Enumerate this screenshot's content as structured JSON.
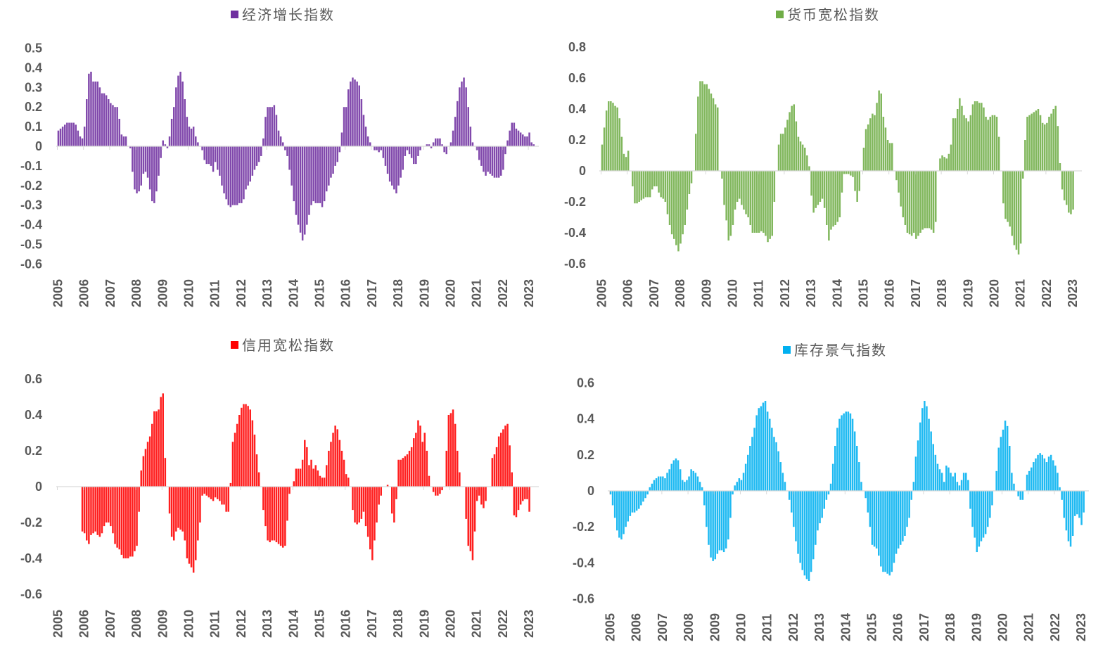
{
  "chart_data": [
    {
      "type": "bar",
      "title": "经济增长指数",
      "legend": "top-center",
      "color": "#7030A0",
      "start": "2005-01",
      "frequency": "monthly",
      "ylim": [
        -0.6,
        0.5
      ],
      "yticks": [
        "0.5",
        "0.4",
        "0.3",
        "0.2",
        "0.1",
        "0",
        "-0.1",
        "-0.2",
        "-0.3",
        "-0.4",
        "-0.5",
        "-0.6"
      ],
      "xticks": [
        "2005",
        "2006",
        "2007",
        "2008",
        "2009",
        "2010",
        "2011",
        "2012",
        "2013",
        "2014",
        "2015",
        "2016",
        "2017",
        "2018",
        "2019",
        "2020",
        "2021",
        "2022",
        "2023"
      ],
      "values": [
        0.08,
        0.09,
        0.1,
        0.11,
        0.12,
        0.12,
        0.12,
        0.12,
        0.11,
        0.08,
        0.05,
        0.04,
        0.1,
        0.24,
        0.37,
        0.38,
        0.33,
        0.33,
        0.33,
        0.3,
        0.27,
        0.27,
        0.26,
        0.24,
        0.22,
        0.21,
        0.2,
        0.2,
        0.14,
        0.06,
        0.05,
        0.05,
        0.0,
        -0.01,
        -0.13,
        -0.22,
        -0.24,
        -0.23,
        -0.2,
        -0.14,
        -0.13,
        -0.16,
        -0.22,
        -0.28,
        -0.29,
        -0.23,
        -0.15,
        -0.06,
        0.03,
        0.01,
        -0.01,
        0.05,
        0.14,
        0.2,
        0.3,
        0.36,
        0.38,
        0.33,
        0.24,
        0.15,
        0.1,
        0.09,
        0.1,
        0.05,
        0.02,
        0.0,
        -0.02,
        -0.07,
        -0.09,
        -0.09,
        -0.1,
        -0.13,
        -0.08,
        -0.12,
        -0.15,
        -0.2,
        -0.24,
        -0.27,
        -0.3,
        -0.31,
        -0.3,
        -0.3,
        -0.3,
        -0.29,
        -0.29,
        -0.27,
        -0.22,
        -0.2,
        -0.18,
        -0.15,
        -0.12,
        -0.1,
        -0.08,
        -0.05,
        0.04,
        0.15,
        0.2,
        0.2,
        0.2,
        0.21,
        0.16,
        0.08,
        0.05,
        0.02,
        -0.02,
        -0.05,
        -0.12,
        -0.2,
        -0.28,
        -0.35,
        -0.4,
        -0.44,
        -0.48,
        -0.45,
        -0.4,
        -0.35,
        -0.3,
        -0.28,
        -0.29,
        -0.29,
        -0.29,
        -0.31,
        -0.28,
        -0.23,
        -0.2,
        -0.16,
        -0.14,
        -0.1,
        -0.08,
        -0.03,
        0.07,
        0.2,
        0.2,
        0.29,
        0.33,
        0.35,
        0.34,
        0.33,
        0.31,
        0.24,
        0.16,
        0.1,
        0.05,
        0.02,
        0.0,
        -0.02,
        -0.02,
        -0.03,
        -0.02,
        -0.06,
        -0.1,
        -0.14,
        -0.18,
        -0.2,
        -0.22,
        -0.24,
        -0.2,
        -0.16,
        -0.12,
        -0.05,
        -0.02,
        -0.04,
        -0.06,
        -0.09,
        -0.09,
        -0.05,
        -0.02,
        0.0,
        0.0,
        0.01,
        0.01,
        -0.01,
        0.02,
        0.04,
        0.04,
        0.04,
        0.01,
        -0.03,
        -0.04,
        0.0,
        0.02,
        0.08,
        0.15,
        0.23,
        0.3,
        0.33,
        0.35,
        0.3,
        0.2,
        0.1,
        0.02,
        0.0,
        -0.02,
        -0.07,
        -0.1,
        -0.13,
        -0.15,
        -0.13,
        -0.14,
        -0.15,
        -0.16,
        -0.16,
        -0.16,
        -0.15,
        -0.12,
        -0.04,
        0.03,
        0.08,
        0.12,
        0.12,
        0.09,
        0.08,
        0.07,
        0.06,
        0.05,
        0.05,
        0.07,
        0.02,
        0.01
      ]
    },
    {
      "type": "bar",
      "title": "货币宽松指数",
      "legend": "top-center",
      "color": "#70AD47",
      "start": "2005-01",
      "frequency": "monthly",
      "ylim": [
        -0.6,
        0.8
      ],
      "yticks": [
        "0.8",
        "0.6",
        "0.4",
        "0.2",
        "0",
        "-0.2",
        "-0.4",
        "-0.6"
      ],
      "xticks": [
        "2005",
        "2006",
        "2007",
        "2008",
        "2009",
        "2010",
        "2011",
        "2012",
        "2013",
        "2014",
        "2015",
        "2016",
        "2017",
        "2018",
        "2019",
        "2020",
        "2021",
        "2022",
        "2023"
      ],
      "values": [
        0.17,
        0.28,
        0.39,
        0.45,
        0.45,
        0.44,
        0.42,
        0.41,
        0.34,
        0.22,
        0.11,
        0.09,
        0.13,
        0.0,
        -0.1,
        -0.21,
        -0.21,
        -0.2,
        -0.19,
        -0.18,
        -0.17,
        -0.17,
        -0.17,
        -0.12,
        -0.1,
        -0.1,
        -0.14,
        -0.17,
        -0.18,
        -0.2,
        -0.28,
        -0.35,
        -0.41,
        -0.44,
        -0.48,
        -0.52,
        -0.47,
        -0.41,
        -0.35,
        -0.25,
        -0.15,
        -0.08,
        0.0,
        0.24,
        0.48,
        0.58,
        0.58,
        0.56,
        0.56,
        0.53,
        0.5,
        0.47,
        0.43,
        0.41,
        0.0,
        -0.05,
        -0.22,
        -0.32,
        -0.45,
        -0.42,
        -0.35,
        -0.25,
        -0.2,
        -0.18,
        -0.22,
        -0.25,
        -0.28,
        -0.3,
        -0.35,
        -0.4,
        -0.4,
        -0.4,
        -0.4,
        -0.39,
        -0.4,
        -0.42,
        -0.46,
        -0.44,
        -0.42,
        -0.2,
        0.0,
        0.17,
        0.24,
        0.24,
        0.28,
        0.33,
        0.38,
        0.42,
        0.43,
        0.32,
        0.22,
        0.19,
        0.17,
        0.15,
        0.1,
        0.03,
        -0.16,
        -0.27,
        -0.24,
        -0.22,
        -0.2,
        -0.18,
        -0.24,
        -0.35,
        -0.45,
        -0.38,
        -0.36,
        -0.35,
        -0.33,
        -0.3,
        -0.14,
        -0.02,
        -0.02,
        -0.02,
        -0.03,
        -0.04,
        -0.13,
        -0.2,
        -0.13,
        0.0,
        0.15,
        0.27,
        0.3,
        0.34,
        0.37,
        0.36,
        0.44,
        0.52,
        0.5,
        0.35,
        0.28,
        0.2,
        0.18,
        0.18,
        0.0,
        -0.06,
        -0.14,
        -0.23,
        -0.3,
        -0.35,
        -0.4,
        -0.41,
        -0.42,
        -0.4,
        -0.44,
        -0.42,
        -0.4,
        -0.38,
        -0.37,
        -0.37,
        -0.37,
        -0.38,
        -0.4,
        -0.33,
        0.0,
        0.08,
        0.1,
        0.09,
        0.08,
        0.11,
        0.17,
        0.34,
        0.34,
        0.4,
        0.47,
        0.42,
        0.36,
        0.34,
        0.32,
        0.36,
        0.43,
        0.45,
        0.45,
        0.44,
        0.44,
        0.41,
        0.35,
        0.33,
        0.35,
        0.36,
        0.36,
        0.35,
        0.22,
        0.0,
        -0.21,
        -0.31,
        -0.33,
        -0.36,
        -0.42,
        -0.48,
        -0.51,
        -0.54,
        -0.47,
        -0.05,
        0.2,
        0.35,
        0.36,
        0.37,
        0.38,
        0.39,
        0.4,
        0.36,
        0.31,
        0.3,
        0.31,
        0.35,
        0.37,
        0.4,
        0.42,
        0.29,
        0.05,
        -0.12,
        -0.19,
        -0.22,
        -0.27,
        -0.28,
        -0.25
      ]
    },
    {
      "type": "bar",
      "title": "信用宽松指数",
      "legend": "top-center",
      "color": "#FF0000",
      "start": "2005-01",
      "frequency": "monthly",
      "ylim": [
        -0.6,
        0.6
      ],
      "yticks": [
        "0.6",
        "0.4",
        "0.2",
        "0",
        "-0.2",
        "-0.4",
        "-0.6"
      ],
      "xticks": [
        "2005",
        "2006",
        "2007",
        "2008",
        "2009",
        "2010",
        "2011",
        "2012",
        "2013",
        "2014",
        "2015",
        "2016",
        "2017",
        "2018",
        "2019",
        "2020",
        "2021",
        "2022",
        "2023"
      ],
      "values": [
        0,
        0,
        0,
        0,
        0,
        0,
        0,
        0,
        0,
        0,
        0,
        -0.25,
        -0.26,
        -0.3,
        -0.32,
        -0.27,
        -0.26,
        -0.25,
        -0.27,
        -0.28,
        -0.26,
        -0.22,
        -0.2,
        -0.2,
        -0.22,
        -0.26,
        -0.32,
        -0.34,
        -0.35,
        -0.38,
        -0.4,
        -0.4,
        -0.4,
        -0.39,
        -0.39,
        -0.36,
        -0.33,
        -0.14,
        0.09,
        0.17,
        0.21,
        0.25,
        0.28,
        0.35,
        0.42,
        0.42,
        0.43,
        0.5,
        0.52,
        0.16,
        0.0,
        -0.15,
        -0.28,
        -0.3,
        -0.25,
        -0.23,
        -0.24,
        -0.25,
        -0.3,
        -0.4,
        -0.43,
        -0.45,
        -0.48,
        -0.41,
        -0.3,
        -0.2,
        -0.05,
        -0.04,
        -0.05,
        -0.06,
        -0.07,
        -0.08,
        -0.06,
        -0.07,
        -0.08,
        -0.1,
        -0.1,
        -0.14,
        -0.14,
        0.02,
        0.25,
        0.3,
        0.35,
        0.4,
        0.44,
        0.46,
        0.46,
        0.45,
        0.43,
        0.37,
        0.29,
        0.18,
        0.08,
        0.0,
        -0.13,
        -0.22,
        -0.3,
        -0.31,
        -0.3,
        -0.3,
        -0.31,
        -0.32,
        -0.33,
        -0.34,
        -0.33,
        -0.19,
        -0.04,
        0.0,
        0.03,
        0.1,
        0.1,
        0.1,
        0.15,
        0.26,
        0.22,
        0.12,
        0.15,
        0.1,
        0.12,
        0.09,
        0.06,
        0.05,
        0.05,
        0.12,
        0.2,
        0.25,
        0.3,
        0.34,
        0.32,
        0.26,
        0.2,
        0.15,
        0.07,
        0.05,
        0.0,
        -0.13,
        -0.2,
        -0.21,
        -0.2,
        -0.18,
        -0.14,
        -0.22,
        -0.28,
        -0.35,
        -0.41,
        -0.3,
        -0.2,
        -0.1,
        -0.05,
        0.0,
        0.0,
        0.01,
        0.0,
        -0.15,
        -0.2,
        -0.07,
        0.15,
        0.15,
        0.16,
        0.17,
        0.18,
        0.2,
        0.22,
        0.27,
        0.3,
        0.37,
        0.34,
        0.25,
        0.3,
        0.2,
        0.06,
        0.0,
        -0.03,
        -0.05,
        -0.05,
        -0.04,
        -0.02,
        0.0,
        0.2,
        0.4,
        0.41,
        0.43,
        0.35,
        0.2,
        0.08,
        0.0,
        0.0,
        -0.18,
        -0.33,
        -0.36,
        -0.41,
        -0.25,
        -0.08,
        -0.05,
        -0.1,
        -0.12,
        -0.08,
        0.0,
        0.0,
        0.16,
        0.18,
        0.22,
        0.28,
        0.3,
        0.32,
        0.34,
        0.35,
        0.23,
        0.08,
        -0.16,
        -0.17,
        -0.13,
        -0.1,
        -0.08,
        -0.07,
        -0.07,
        -0.14
      ]
    },
    {
      "type": "bar",
      "title": "库存景气指数",
      "legend": "top-center",
      "color": "#00B0F0",
      "start": "2005-01",
      "frequency": "monthly",
      "ylim": [
        -0.6,
        0.6
      ],
      "yticks": [
        "0.6",
        "0.4",
        "0.2",
        "0",
        "-0.2",
        "-0.4",
        "-0.6"
      ],
      "xticks": [
        "2005",
        "2006",
        "2007",
        "2008",
        "2009",
        "2010",
        "2011",
        "2012",
        "2013",
        "2014",
        "2015",
        "2016",
        "2017",
        "2018",
        "2019",
        "2020",
        "2021",
        "2022",
        "2023"
      ],
      "values": [
        -0.02,
        -0.08,
        -0.15,
        -0.22,
        -0.26,
        -0.27,
        -0.24,
        -0.2,
        -0.17,
        -0.14,
        -0.12,
        -0.12,
        -0.11,
        -0.1,
        -0.08,
        -0.06,
        -0.04,
        -0.02,
        0.02,
        0.04,
        0.06,
        0.07,
        0.08,
        0.08,
        0.08,
        0.07,
        0.1,
        0.12,
        0.15,
        0.17,
        0.18,
        0.17,
        0.12,
        0.06,
        0.05,
        0.06,
        0.08,
        0.12,
        0.11,
        0.1,
        0.08,
        0.05,
        0.02,
        -0.08,
        -0.2,
        -0.3,
        -0.37,
        -0.39,
        -0.38,
        -0.35,
        -0.33,
        -0.33,
        -0.34,
        -0.32,
        -0.27,
        -0.15,
        -0.02,
        0.03,
        0.05,
        0.07,
        0.06,
        0.1,
        0.15,
        0.2,
        0.25,
        0.3,
        0.35,
        0.42,
        0.46,
        0.47,
        0.49,
        0.5,
        0.44,
        0.4,
        0.35,
        0.3,
        0.27,
        0.22,
        0.16,
        0.1,
        0.05,
        0.0,
        -0.05,
        -0.12,
        -0.2,
        -0.28,
        -0.35,
        -0.4,
        -0.44,
        -0.47,
        -0.49,
        -0.5,
        -0.45,
        -0.38,
        -0.3,
        -0.22,
        -0.18,
        -0.15,
        -0.1,
        -0.05,
        -0.02,
        0.04,
        0.15,
        0.25,
        0.35,
        0.4,
        0.42,
        0.43,
        0.44,
        0.44,
        0.43,
        0.4,
        0.33,
        0.25,
        0.16,
        0.05,
        0.0,
        -0.04,
        -0.12,
        -0.2,
        -0.3,
        -0.31,
        -0.32,
        -0.36,
        -0.42,
        -0.45,
        -0.45,
        -0.46,
        -0.47,
        -0.45,
        -0.4,
        -0.35,
        -0.32,
        -0.3,
        -0.28,
        -0.25,
        -0.2,
        -0.15,
        -0.05,
        0.05,
        0.19,
        0.28,
        0.38,
        0.46,
        0.5,
        0.47,
        0.4,
        0.33,
        0.26,
        0.2,
        0.15,
        0.12,
        0.1,
        0.05,
        0.14,
        0.13,
        0.1,
        0.08,
        0.1,
        0.05,
        0.03,
        0.06,
        0.1,
        0.1,
        0.06,
        -0.1,
        -0.2,
        -0.26,
        -0.34,
        -0.31,
        -0.28,
        -0.26,
        -0.24,
        -0.2,
        -0.15,
        -0.08,
        0.0,
        0.11,
        0.24,
        0.3,
        0.34,
        0.39,
        0.36,
        0.25,
        0.1,
        0.04,
        0.0,
        -0.03,
        -0.05,
        -0.05,
        0.0,
        0.09,
        0.11,
        0.13,
        0.16,
        0.18,
        0.2,
        0.21,
        0.2,
        0.18,
        0.16,
        0.19,
        0.2,
        0.17,
        0.14,
        0.1,
        0.02,
        -0.05,
        -0.15,
        -0.22,
        -0.28,
        -0.31,
        -0.25,
        -0.14,
        -0.13,
        -0.15,
        -0.19,
        -0.12
      ]
    }
  ]
}
